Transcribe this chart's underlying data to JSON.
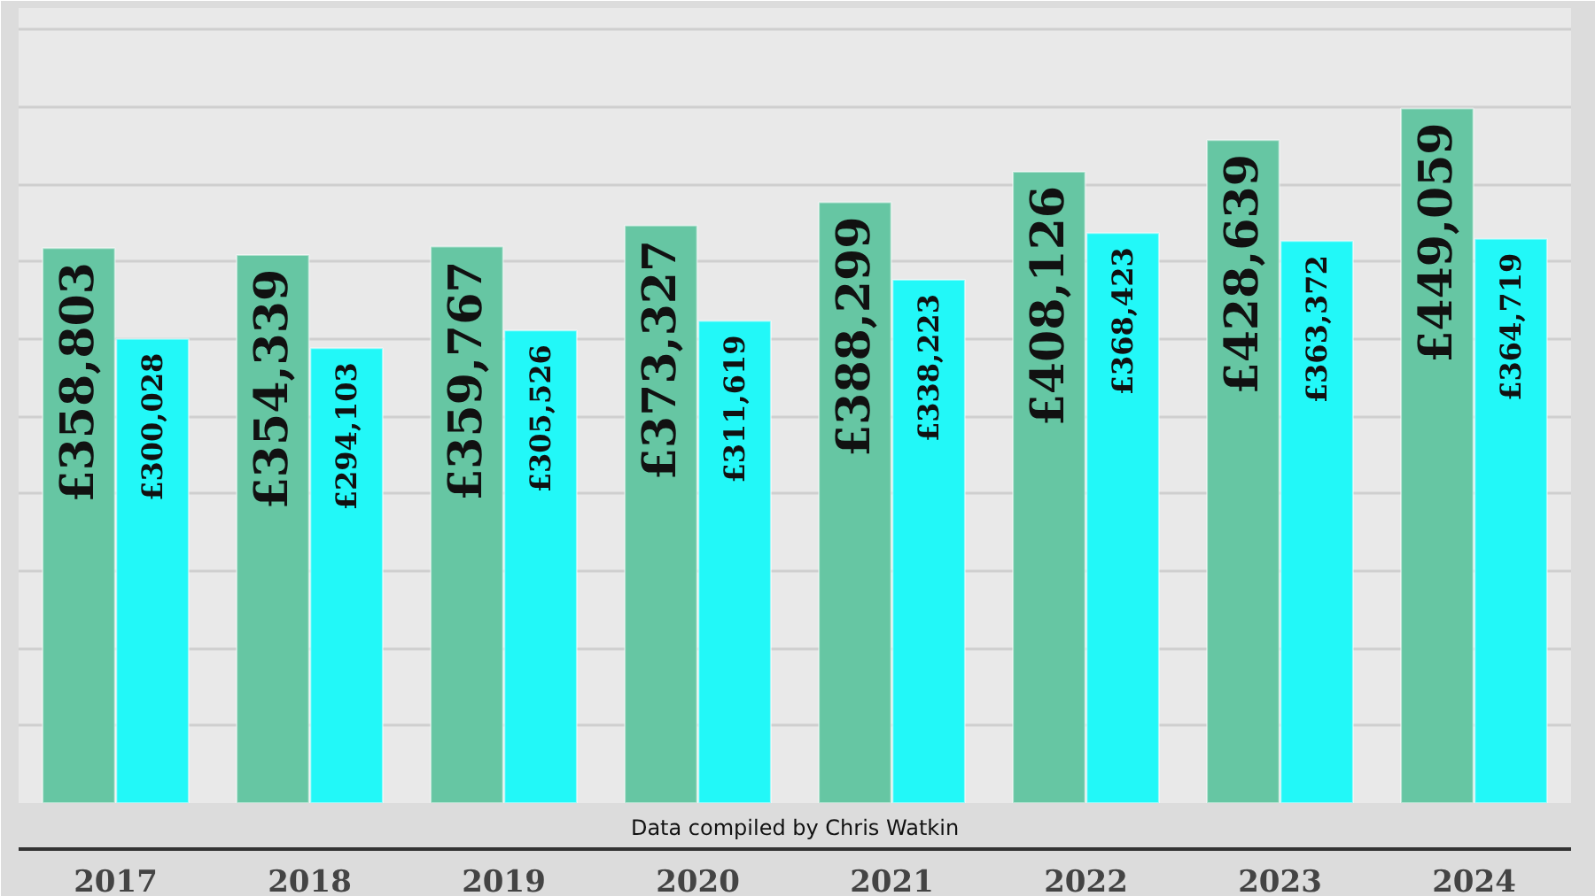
{
  "chart_data": {
    "type": "bar",
    "categories": [
      "2017",
      "2018",
      "2019",
      "2020",
      "2021",
      "2022",
      "2023",
      "2024"
    ],
    "series": [
      {
        "color": "#66c6a3",
        "values": [
          358803,
          354339,
          359767,
          373327,
          388299,
          408126,
          428639,
          449059
        ],
        "value_labels": [
          "£358,803",
          "£354,339",
          "£359,767",
          "£373,327",
          "£388,299",
          "£408,126",
          "£428,639",
          "£449,059"
        ]
      },
      {
        "color": "#22f8f8",
        "values": [
          300028,
          294103,
          305526,
          311619,
          338223,
          368423,
          363372,
          364719
        ],
        "value_labels": [
          "£300,028",
          "£294,103",
          "£305,526",
          "£311,619",
          "£338,223",
          "£368,423",
          "£363,372",
          "£364,719"
        ]
      }
    ],
    "ylim": [
      0,
      514000
    ],
    "yticks": [
      {
        "value": 0,
        "label": null
      },
      {
        "value": 50000,
        "label": null
      },
      {
        "value": 100000,
        "label": null
      },
      {
        "value": 150000,
        "label": null
      },
      {
        "value": 200000,
        "label": null
      },
      {
        "value": 250000,
        "label": null
      },
      {
        "value": 300000,
        "label": null
      },
      {
        "value": 350000,
        "label": null
      },
      {
        "value": 400000,
        "label": null
      },
      {
        "value": 450000,
        "label": null
      },
      {
        "value": 500000,
        "label": null
      }
    ],
    "grid": "y",
    "tick_labels": "x",
    "annotations": [
      "Data compiled by Chris Watkin"
    ]
  }
}
